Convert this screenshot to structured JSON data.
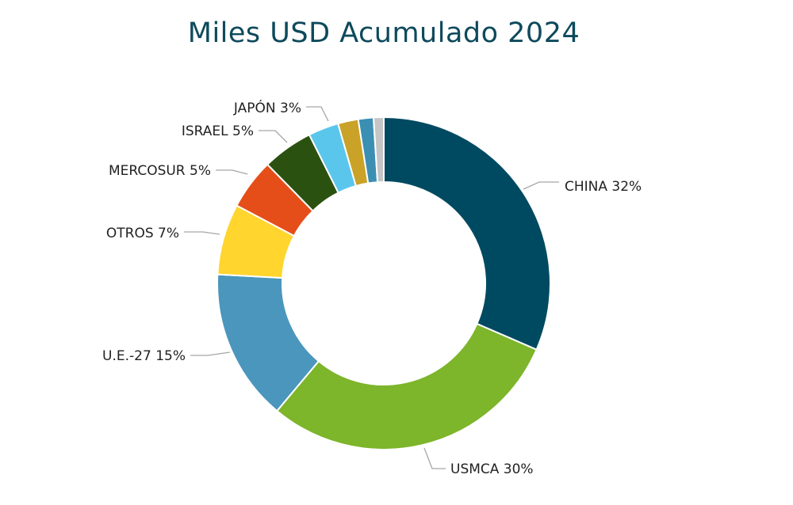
{
  "chart_data": {
    "type": "pie",
    "variant": "donut",
    "title": "Miles USD Acumulado 2024",
    "legend": "none",
    "slices": [
      {
        "label": "CHINA",
        "value": 32,
        "display": "CHINA 32%",
        "color": "#004a61"
      },
      {
        "label": "USMCA",
        "value": 30,
        "display": "USMCA 30%",
        "color": "#7db52b"
      },
      {
        "label": "U.E.-27",
        "value": 15,
        "display": "U.E.-27 15%",
        "color": "#4a96bd"
      },
      {
        "label": "OTROS",
        "value": 7,
        "display": "OTROS 7%",
        "color": "#ffd52e"
      },
      {
        "label": "MERCOSUR",
        "value": 5,
        "display": "MERCOSUR 5%",
        "color": "#e64e19"
      },
      {
        "label": "ISRAEL",
        "value": 5,
        "display": "ISRAEL 5%",
        "color": "#2b5111"
      },
      {
        "label": "JAPÓN",
        "value": 3,
        "display": "JAPÓN 3%",
        "color": "#5bc6ec"
      },
      {
        "label": "",
        "value": 2,
        "display": "",
        "color": "#c9a227"
      },
      {
        "label": "",
        "value": 1.5,
        "display": "",
        "color": "#3b8fb2"
      },
      {
        "label": "",
        "value": 1,
        "display": "",
        "color": "#c5c5c5"
      }
    ]
  }
}
